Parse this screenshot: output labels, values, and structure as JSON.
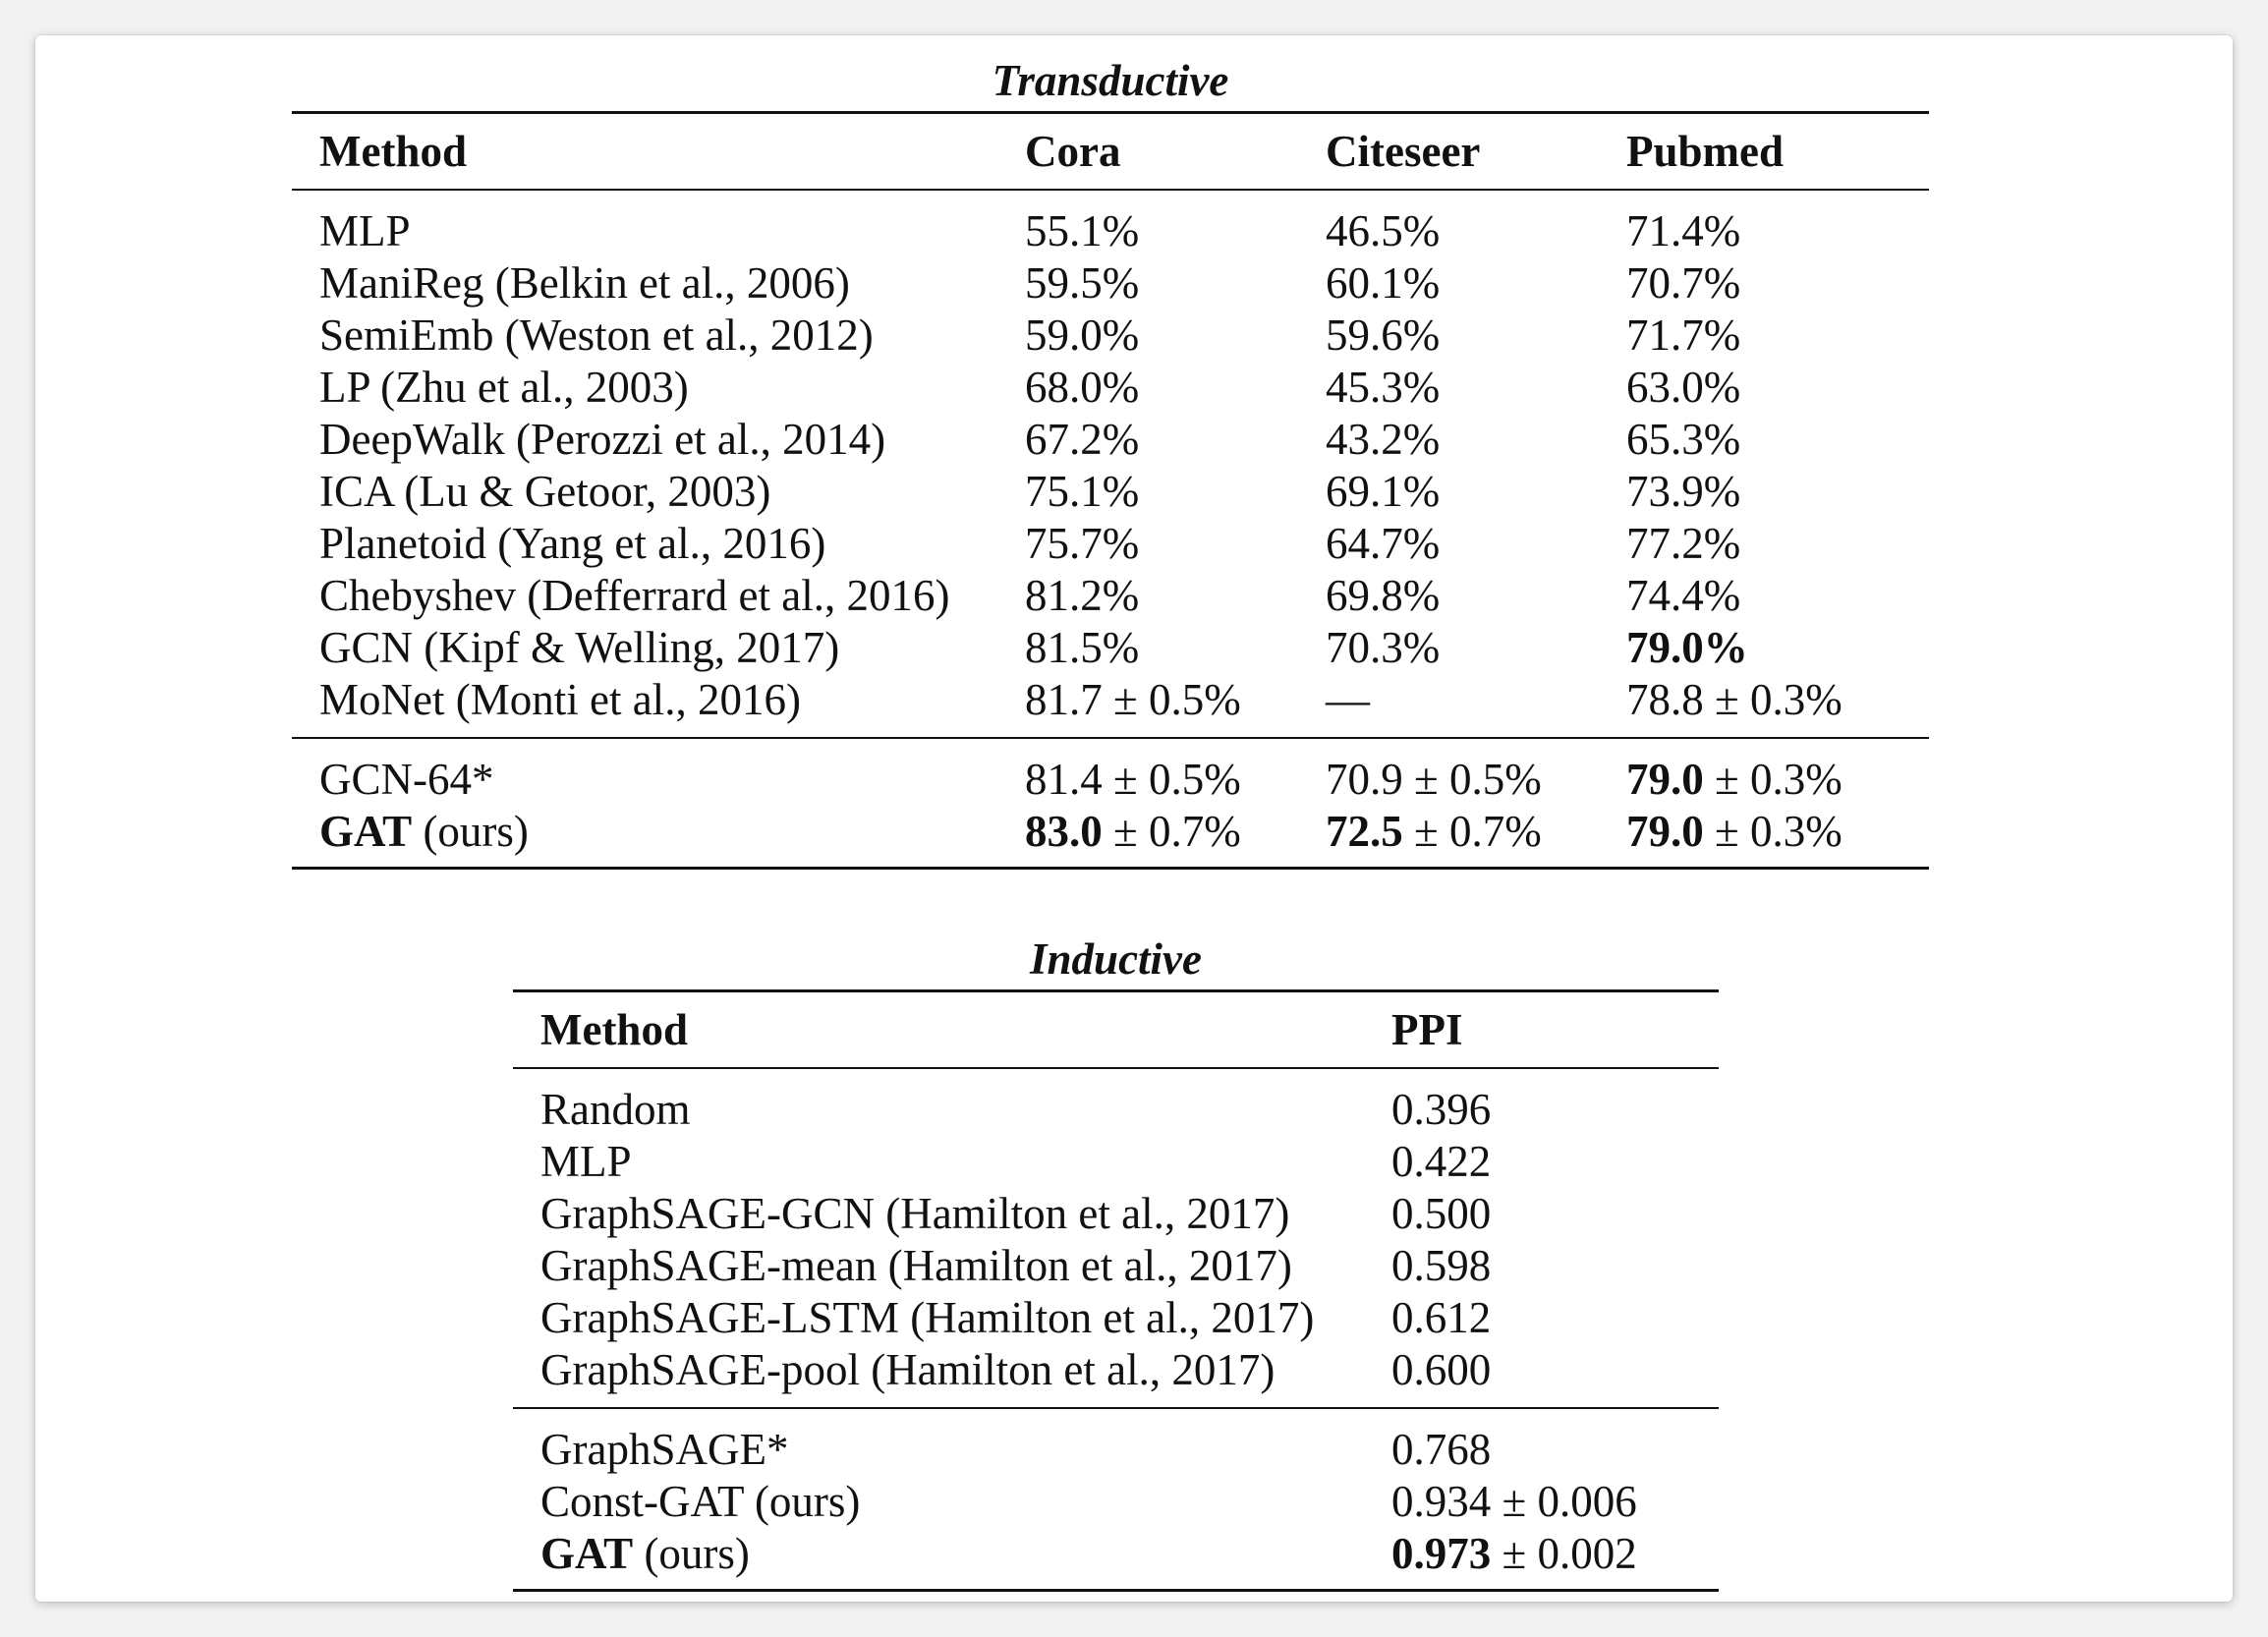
{
  "transductive": {
    "caption": "Transductive",
    "headers": [
      "Method",
      "Cora",
      "Citeseer",
      "Pubmed"
    ],
    "rows": [
      {
        "method": "MLP",
        "cora": "55.1%",
        "citeseer": "46.5%",
        "pubmed": "71.4%"
      },
      {
        "method": "ManiReg (Belkin et al., 2006)",
        "cora": "59.5%",
        "citeseer": "60.1%",
        "pubmed": "70.7%"
      },
      {
        "method": "SemiEmb (Weston et al., 2012)",
        "cora": "59.0%",
        "citeseer": "59.6%",
        "pubmed": "71.7%"
      },
      {
        "method": "LP (Zhu et al., 2003)",
        "cora": "68.0%",
        "citeseer": "45.3%",
        "pubmed": "63.0%"
      },
      {
        "method": "DeepWalk (Perozzi et al., 2014)",
        "cora": "67.2%",
        "citeseer": "43.2%",
        "pubmed": "65.3%"
      },
      {
        "method": "ICA (Lu & Getoor, 2003)",
        "cora": "75.1%",
        "citeseer": "69.1%",
        "pubmed": "73.9%"
      },
      {
        "method": "Planetoid (Yang et al., 2016)",
        "cora": "75.7%",
        "citeseer": "64.7%",
        "pubmed": "77.2%"
      },
      {
        "method": "Chebyshev (Defferrard et al., 2016)",
        "cora": "81.2%",
        "citeseer": "69.8%",
        "pubmed": "74.4%"
      },
      {
        "method": "GCN (Kipf & Welling, 2017)",
        "cora": "81.5%",
        "citeseer": "70.3%",
        "pubmed": "79.0%"
      },
      {
        "method": "MoNet (Monti et al., 2016)",
        "cora": "81.7 ± 0.5%",
        "citeseer": "—",
        "pubmed": "78.8 ± 0.3%"
      }
    ],
    "gcn64": {
      "method": "GCN-64*",
      "cora": "81.4 ± 0.5%",
      "citeseer": "70.9 ± 0.5%",
      "pubmed_bold": "79.0",
      "pubmed_rest": " ± 0.3%"
    },
    "gat": {
      "method_bold": "GAT",
      "method_rest": " (ours)",
      "cora_bold": "83.0",
      "cora_rest": " ± 0.7%",
      "citeseer_bold": "72.5",
      "citeseer_rest": " ± 0.7%",
      "pubmed_bold": "79.0",
      "pubmed_rest": " ± 0.3%"
    }
  },
  "inductive": {
    "caption": "Inductive",
    "headers": [
      "Method",
      "PPI"
    ],
    "rows": [
      {
        "method": "Random",
        "ppi": "0.396"
      },
      {
        "method": "MLP",
        "ppi": "0.422"
      },
      {
        "method": "GraphSAGE-GCN (Hamilton et al., 2017)",
        "ppi": "0.500"
      },
      {
        "method": "GraphSAGE-mean (Hamilton et al., 2017)",
        "ppi": "0.598"
      },
      {
        "method": "GraphSAGE-LSTM (Hamilton et al., 2017)",
        "ppi": "0.612"
      },
      {
        "method": "GraphSAGE-pool (Hamilton et al., 2017)",
        "ppi": "0.600"
      }
    ],
    "graphsage_star": {
      "method": "GraphSAGE*",
      "ppi": "0.768"
    },
    "const_gat": {
      "method": "Const-GAT (ours)",
      "ppi": "0.934 ± 0.006"
    },
    "gat": {
      "method_bold": "GAT",
      "method_rest": " (ours)",
      "ppi_bold": "0.973",
      "ppi_rest": " ± 0.002"
    }
  }
}
